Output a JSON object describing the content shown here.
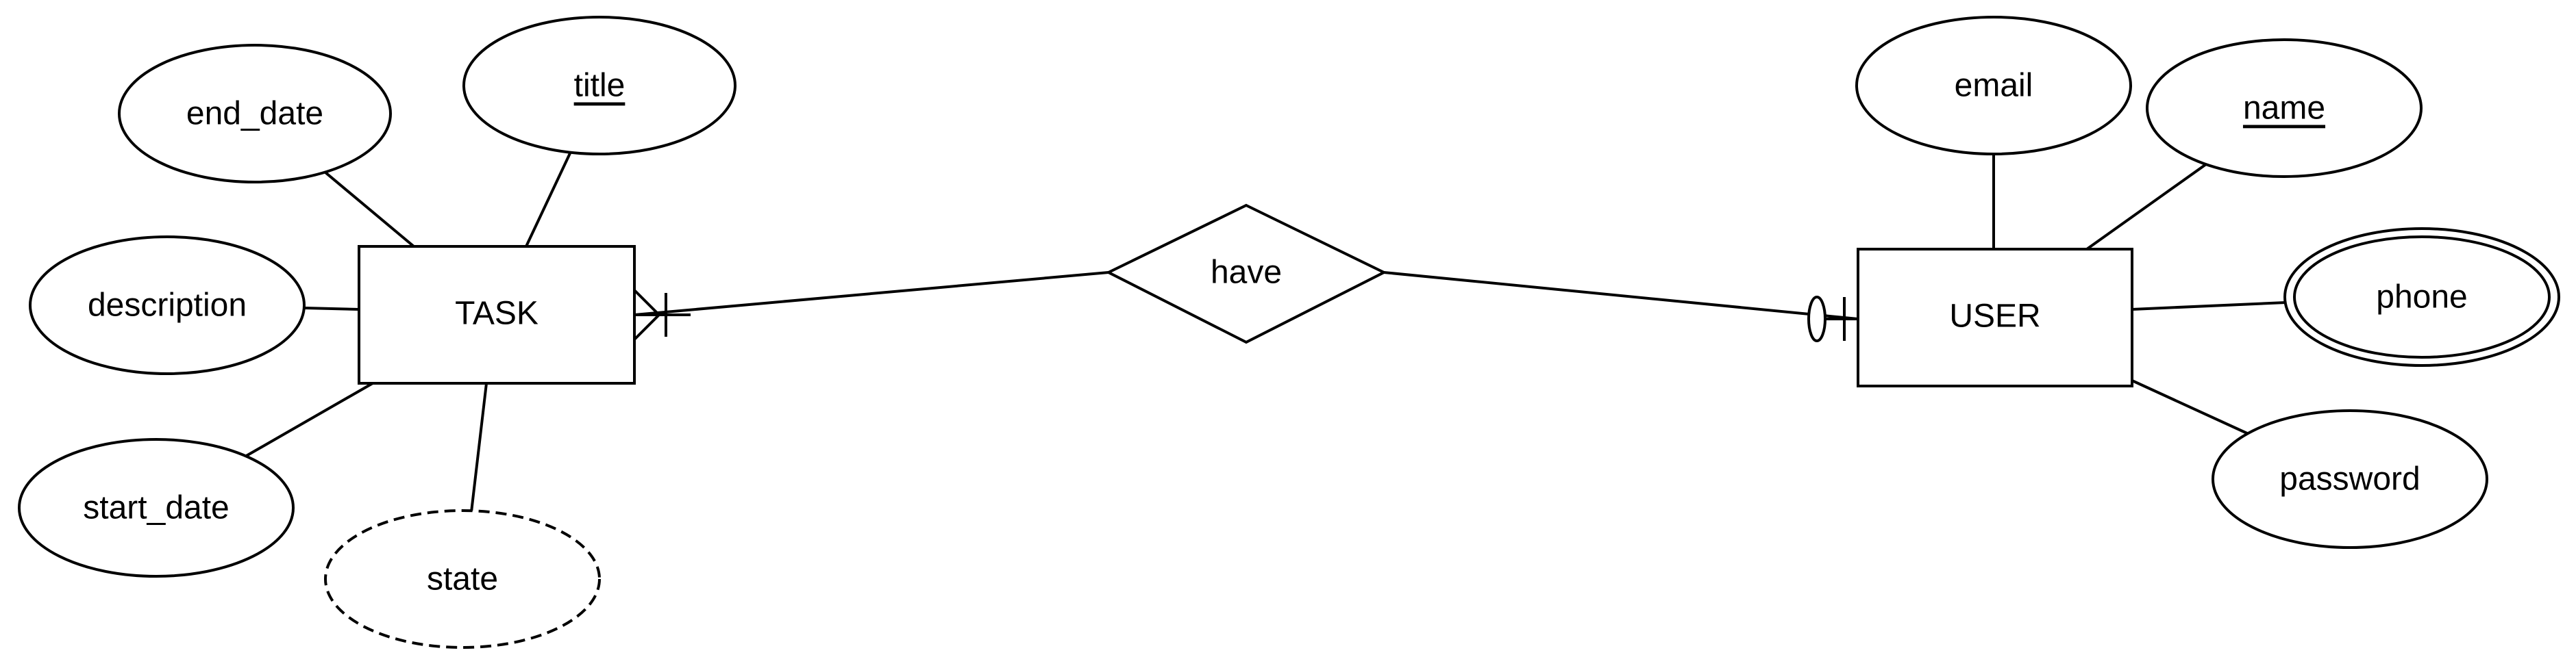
{
  "diagram": {
    "type": "entity-relationship",
    "entities": {
      "task": {
        "label": "TASK"
      },
      "user": {
        "label": "USER"
      }
    },
    "relationship": {
      "label": "have",
      "task_side_cardinality": "one-or-many",
      "user_side_cardinality": "zero-or-one"
    },
    "task_attributes": {
      "title": {
        "label": "title",
        "kind": "key"
      },
      "end_date": {
        "label": "end_date",
        "kind": "simple"
      },
      "description": {
        "label": "description",
        "kind": "simple"
      },
      "start_date": {
        "label": "start_date",
        "kind": "simple"
      },
      "state": {
        "label": "state",
        "kind": "derived"
      }
    },
    "user_attributes": {
      "email": {
        "label": "email",
        "kind": "simple"
      },
      "name": {
        "label": "name",
        "kind": "key"
      },
      "phone": {
        "label": "phone",
        "kind": "multivalued"
      },
      "password": {
        "label": "password",
        "kind": "simple"
      }
    }
  }
}
